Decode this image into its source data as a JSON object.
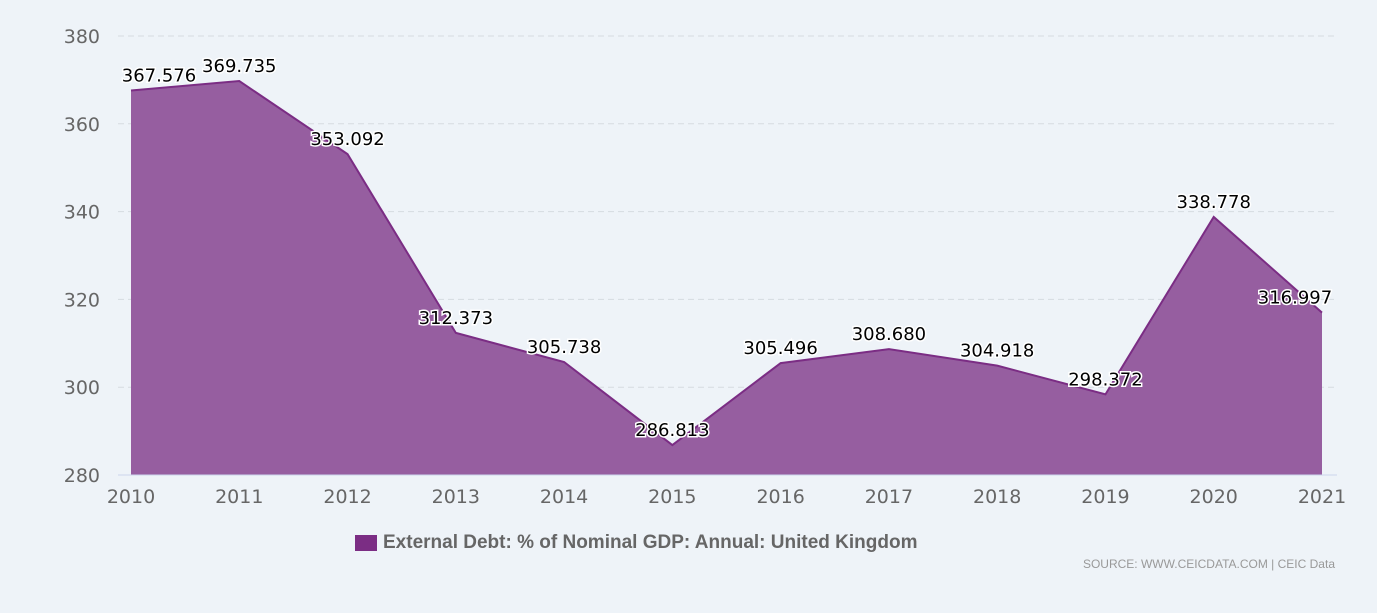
{
  "chart_data": {
    "type": "area",
    "categories": [
      "2010",
      "2011",
      "2012",
      "2013",
      "2014",
      "2015",
      "2016",
      "2017",
      "2018",
      "2019",
      "2020",
      "2021"
    ],
    "series": [
      {
        "name": "External Debt: % of Nominal GDP: Annual: United Kingdom",
        "values": [
          367.576,
          369.735,
          353.092,
          312.373,
          305.738,
          286.813,
          305.496,
          308.68,
          304.918,
          298.372,
          338.778,
          316.997
        ],
        "labels": [
          "367.576",
          "369.735",
          "353.092",
          "312.373",
          "305.738",
          "286.813",
          "305.496",
          "308.680",
          "304.918",
          "298.372",
          "338.778",
          "316.997"
        ]
      }
    ],
    "ylim": [
      280,
      380
    ],
    "yticks": [
      "280",
      "300",
      "320",
      "340",
      "360",
      "380"
    ],
    "grid": true,
    "legend": "bottom-center",
    "colors": {
      "fill": "#965ea0",
      "line": "#7b2d84",
      "legend": "#7b2d84"
    }
  },
  "source": "SOURCE: WWW.CEICDATA.COM | CEIC Data"
}
